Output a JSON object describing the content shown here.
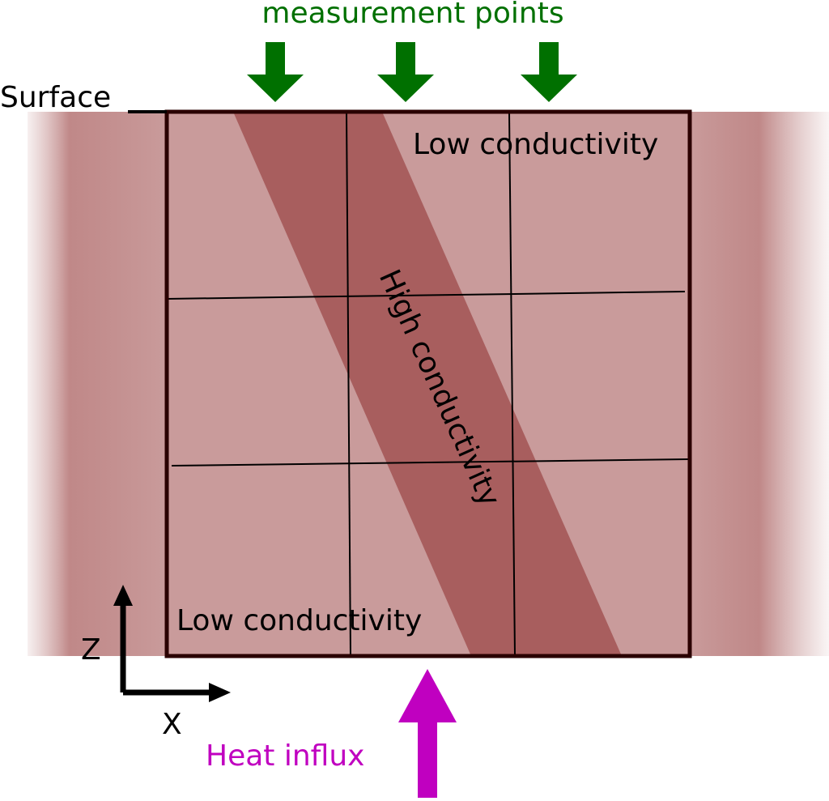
{
  "labels": {
    "measurement": "measurement points",
    "surface": "Surface",
    "low_top": "Low conductivity",
    "high": "High conductivity",
    "low_bottom": "Low conductivity",
    "axis_z": "Z",
    "axis_x": "X",
    "heat": "Heat influx"
  }
}
